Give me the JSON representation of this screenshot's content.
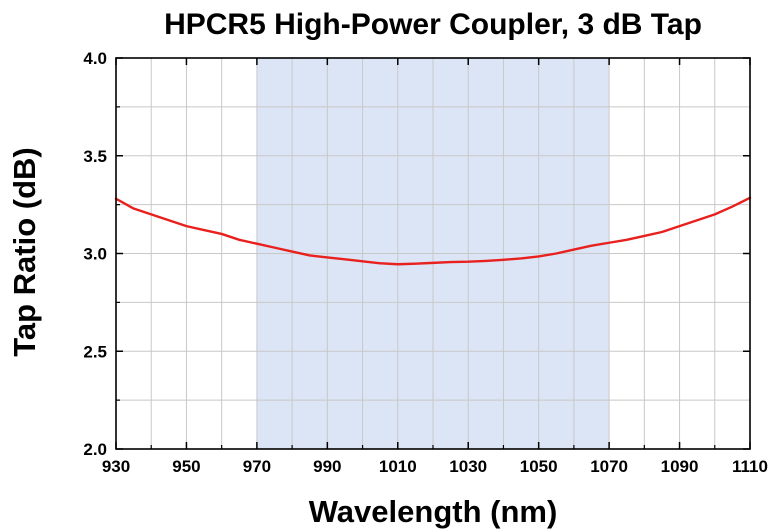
{
  "chart_data": {
    "type": "line",
    "title": "HPCR5 High-Power Coupler, 3 dB Tap",
    "xlabel": "Wavelength (nm)",
    "ylabel": "Tap Ratio (dB)",
    "xlim": [
      930,
      1110
    ],
    "ylim": [
      2.0,
      4.0
    ],
    "x_ticks": [
      "930",
      "950",
      "970",
      "990",
      "1010",
      "1030",
      "1050",
      "1070",
      "1090",
      "1110"
    ],
    "y_ticks": [
      "2.0",
      "2.5",
      "3.0",
      "3.5",
      "4.0"
    ],
    "x_grid_step": 10,
    "y_grid_step": 0.25,
    "grid": true,
    "highlight_band": {
      "x_range": [
        970,
        1070
      ],
      "color": "#dce5f5"
    },
    "series": [
      {
        "color": "#e8201e",
        "x": [
          930,
          935,
          940,
          945,
          950,
          955,
          960,
          965,
          970,
          975,
          980,
          985,
          990,
          995,
          1000,
          1005,
          1010,
          1015,
          1020,
          1025,
          1030,
          1035,
          1040,
          1045,
          1050,
          1055,
          1060,
          1065,
          1070,
          1075,
          1080,
          1085,
          1090,
          1095,
          1100,
          1105,
          1110
        ],
        "y": [
          3.28,
          3.23,
          3.2,
          3.17,
          3.14,
          3.12,
          3.1,
          3.07,
          3.05,
          3.03,
          3.01,
          2.99,
          2.98,
          2.97,
          2.96,
          2.95,
          2.945,
          2.948,
          2.952,
          2.956,
          2.958,
          2.962,
          2.968,
          2.975,
          2.985,
          3.0,
          3.02,
          3.04,
          3.055,
          3.07,
          3.09,
          3.11,
          3.14,
          3.17,
          3.2,
          3.24,
          3.285
        ]
      }
    ]
  }
}
